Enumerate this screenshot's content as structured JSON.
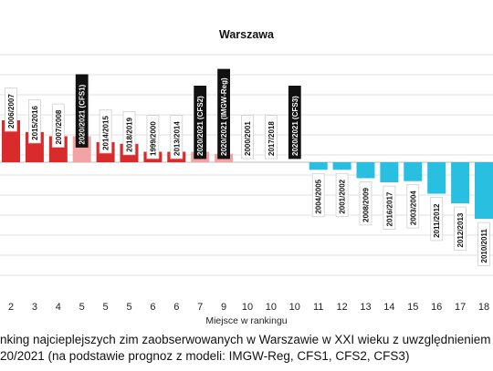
{
  "chart_data": {
    "type": "bar",
    "title": "Warszawa",
    "xlabel": "Miejsce w rankingu",
    "ylabel": "",
    "grid": true,
    "bars": [
      {
        "x": "2",
        "label": "2006/2007",
        "value": 1.0,
        "kind": "observed"
      },
      {
        "x": "3",
        "label": "2015/2016",
        "value": 0.72,
        "kind": "observed"
      },
      {
        "x": "4",
        "label": "2007/2008",
        "value": 0.62,
        "kind": "observed"
      },
      {
        "x": "5",
        "label": "2020/2021 (CFS1)",
        "value": 0.62,
        "kind": "forecast"
      },
      {
        "x": "5",
        "label": "2014/2015",
        "value": 0.48,
        "kind": "observed"
      },
      {
        "x": "5",
        "label": "2018/2019",
        "value": 0.44,
        "kind": "observed"
      },
      {
        "x": "6",
        "label": "1999/2000",
        "value": 0.25,
        "kind": "observed"
      },
      {
        "x": "6",
        "label": "2013/2014",
        "value": 0.25,
        "kind": "observed"
      },
      {
        "x": "7",
        "label": "2020/2021 (CFS2)",
        "value": 0.25,
        "kind": "forecast"
      },
      {
        "x": "9",
        "label": "2020/2021 (IMGW-Reg)",
        "value": 0.2,
        "kind": "forecast"
      },
      {
        "x": "10",
        "label": "2000/2001",
        "value": 0.0,
        "kind": "observed"
      },
      {
        "x": "10",
        "label": "2017/2018",
        "value": 0.0,
        "kind": "observed"
      },
      {
        "x": "10",
        "label": "2020/2021 (CFS3)",
        "value": 0.0,
        "kind": "forecast"
      },
      {
        "x": "11",
        "label": "2004/2005",
        "value": -0.18,
        "kind": "observed"
      },
      {
        "x": "12",
        "label": "2001/2002",
        "value": -0.18,
        "kind": "observed"
      },
      {
        "x": "13",
        "label": "2008/2009",
        "value": -0.38,
        "kind": "observed"
      },
      {
        "x": "14",
        "label": "2016/2017",
        "value": -0.48,
        "kind": "observed"
      },
      {
        "x": "15",
        "label": "2003/2004",
        "value": -0.45,
        "kind": "observed"
      },
      {
        "x": "16",
        "label": "2011/2012",
        "value": -0.75,
        "kind": "observed"
      },
      {
        "x": "17",
        "label": "2012/2013",
        "value": -0.98,
        "kind": "observed"
      },
      {
        "x": "18",
        "label": "2010/2011",
        "value": -1.35,
        "kind": "observed"
      }
    ],
    "colors": {
      "observed_positive": "#d92b2b",
      "forecast": "#f2a3a3",
      "negative": "#29bfe0"
    }
  },
  "caption": {
    "line1": "nking najcieplejszych zim zaobserwowanych w Warszawie w XXI wieku z uwzględnieniem",
    "line2": "20/2021 (na podstawie prognoz z modeli: IMGW-Reg, CFS1, CFS2, CFS3)"
  }
}
